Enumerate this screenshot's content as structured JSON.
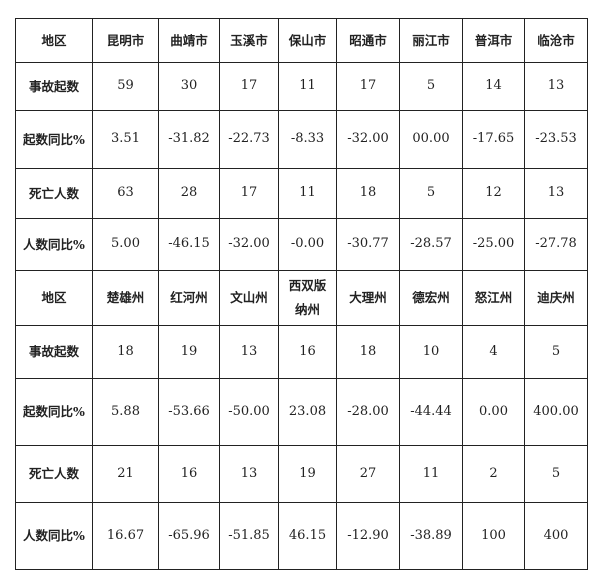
{
  "tables": [
    {
      "header": [
        "地区",
        "昆明市",
        "曲靖市",
        "玉溪市",
        "保山市",
        "昭通市",
        "丽江市",
        "普洱市",
        "临沧市"
      ],
      "rows": [
        [
          "事故起数",
          "59",
          "30",
          "17",
          "11",
          "17",
          "5",
          "14",
          "13"
        ],
        [
          "起数同比%",
          "3.51",
          "-31.82",
          "-22.73",
          "-8.33",
          "-32.00",
          "00.00",
          "-17.65",
          "-23.53"
        ],
        [
          "死亡人数",
          "63",
          "28",
          "17",
          "11",
          "18",
          "5",
          "12",
          "13"
        ],
        [
          "人数同比%",
          "5.00",
          "-46.15",
          "-32.00",
          "-0.00",
          "-30.77",
          "-28.57",
          "-25.00",
          "-27.78"
        ]
      ]
    },
    {
      "header": [
        "地区",
        "楚雄州",
        "红河州",
        "文山州",
        "西双版纳州",
        "大理州",
        "德宏州",
        "怒江州",
        "迪庆州"
      ],
      "rows": [
        [
          "事故起数",
          "18",
          "19",
          "13",
          "16",
          "18",
          "10",
          "4",
          "5"
        ],
        [
          "起数同比%",
          "5.88",
          "-53.66",
          "-50.00",
          "23.08",
          "-28.00",
          "-44.44",
          "0.00",
          "400.00"
        ],
        [
          "死亡人数",
          "21",
          "16",
          "13",
          "19",
          "27",
          "11",
          "2",
          "5"
        ],
        [
          "人数同比%",
          "16.67",
          "-65.96",
          "-51.85",
          "46.15",
          "-12.90",
          "-38.89",
          "100",
          "400"
        ]
      ]
    }
  ]
}
